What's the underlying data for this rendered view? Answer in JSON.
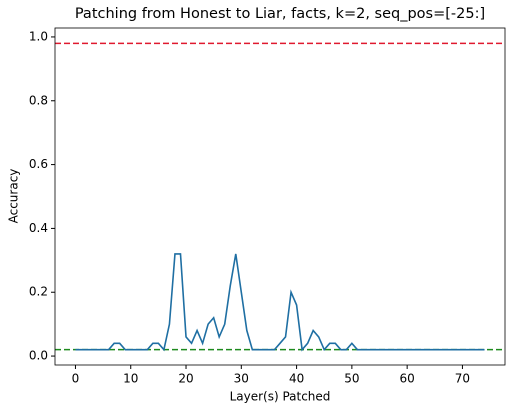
{
  "chart_data": {
    "type": "line",
    "title": "Patching from Honest to Liar, facts, k=2, seq_pos=[-25:]",
    "x_label": "Layer(s) Patched",
    "y_label": "Accuracy",
    "x": [
      0,
      1,
      2,
      3,
      4,
      5,
      6,
      7,
      8,
      9,
      10,
      11,
      12,
      13,
      14,
      15,
      16,
      17,
      18,
      19,
      20,
      21,
      22,
      23,
      24,
      25,
      26,
      27,
      28,
      29,
      30,
      31,
      32,
      33,
      34,
      35,
      36,
      37,
      38,
      39,
      40,
      41,
      42,
      43,
      44,
      45,
      46,
      47,
      48,
      49,
      50,
      51,
      52,
      53,
      54,
      55,
      56,
      57,
      58,
      59,
      60,
      61,
      62,
      63,
      64,
      65,
      66,
      67,
      68,
      69,
      70,
      71,
      72,
      73,
      74
    ],
    "series": [
      {
        "color": "#1f6fa3",
        "values": [
          0.02,
          0.02,
          0.02,
          0.02,
          0.02,
          0.02,
          0.02,
          0.04,
          0.04,
          0.02,
          0.02,
          0.02,
          0.02,
          0.02,
          0.04,
          0.04,
          0.02,
          0.1,
          0.32,
          0.32,
          0.06,
          0.04,
          0.08,
          0.04,
          0.1,
          0.12,
          0.06,
          0.1,
          0.22,
          0.32,
          0.2,
          0.08,
          0.02,
          0.02,
          0.02,
          0.02,
          0.02,
          0.04,
          0.06,
          0.2,
          0.16,
          0.02,
          0.04,
          0.08,
          0.06,
          0.02,
          0.04,
          0.04,
          0.02,
          0.02,
          0.04,
          0.02,
          0.02,
          0.02,
          0.02,
          0.02,
          0.02,
          0.02,
          0.02,
          0.02,
          0.02,
          0.02,
          0.02,
          0.02,
          0.02,
          0.02,
          0.02,
          0.02,
          0.02,
          0.02,
          0.02,
          0.02,
          0.02,
          0.02,
          0.02
        ]
      }
    ],
    "hlines": [
      {
        "value": 0.98,
        "color": "#e0192f"
      },
      {
        "value": 0.02,
        "color": "#1d8a1d"
      }
    ],
    "xlim": [
      -3.7,
      77.7
    ],
    "xticks": [
      0,
      10,
      20,
      30,
      40,
      50,
      60,
      70
    ],
    "ylim": [
      -0.028,
      1.028
    ],
    "yticks": [
      {
        "value": 0,
        "label": "0.0"
      },
      {
        "value": 0.2,
        "label": "0.2"
      },
      {
        "value": 0.4,
        "label": "0.4"
      },
      {
        "value": 0.6,
        "label": "0.6"
      },
      {
        "value": 0.8,
        "label": "0.8"
      },
      {
        "value": 1,
        "label": "1.0"
      }
    ]
  }
}
